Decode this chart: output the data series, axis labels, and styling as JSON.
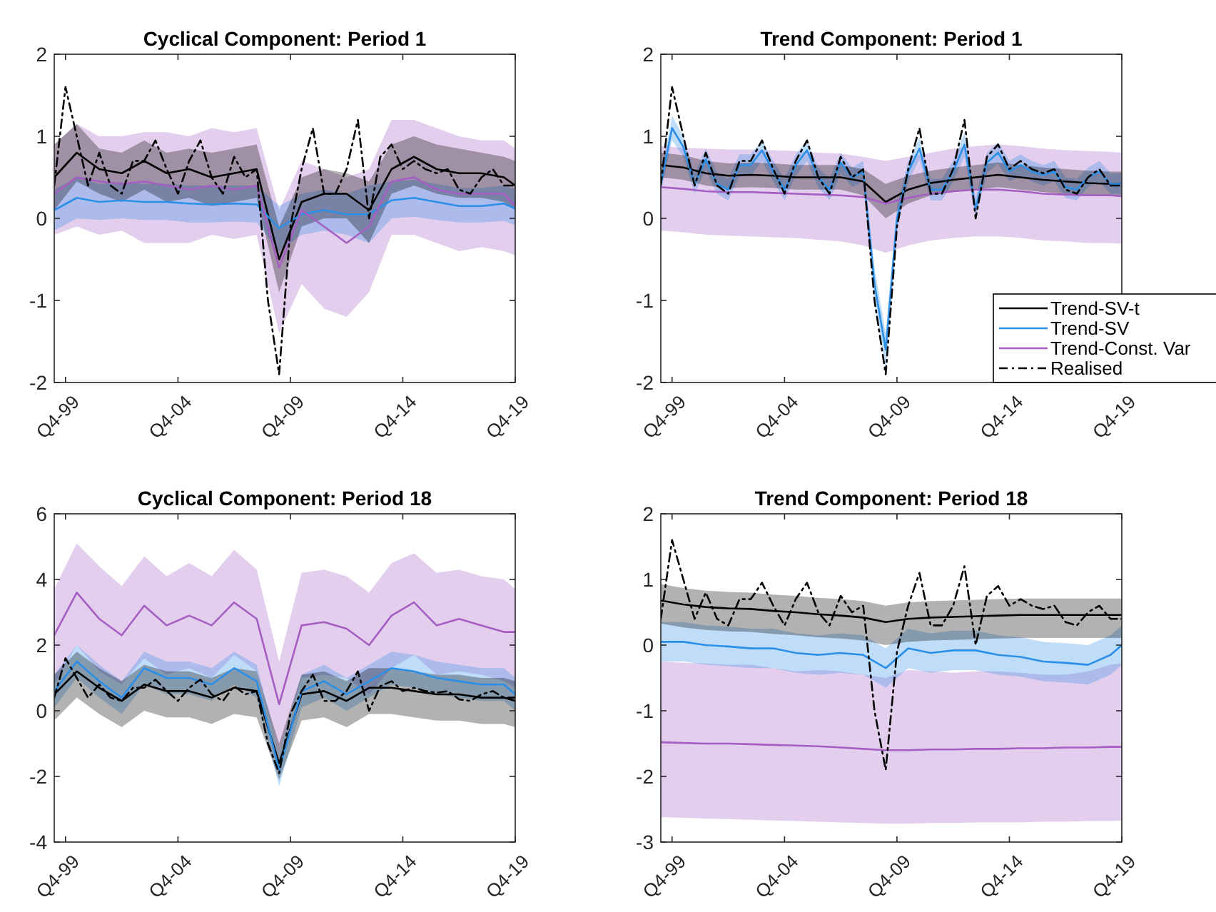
{
  "chart_data": [
    {
      "type": "line",
      "title": "Cyclical Component: Period 1",
      "xlim": [
        "1999-04",
        "2019-10"
      ],
      "xticks": [
        {
          "value": "1999-10",
          "label": "Q4-99"
        },
        {
          "value": "2004-10",
          "label": "Q4-04"
        },
        {
          "value": "2009-10",
          "label": "Q4-09"
        },
        {
          "value": "2014-10",
          "label": "Q4-14"
        },
        {
          "value": "2019-10",
          "label": "Q4-19"
        }
      ],
      "ylim": [
        -2,
        2
      ],
      "yticks": [
        -2,
        -1,
        0,
        1,
        2
      ],
      "series": [
        {
          "color": "#000000",
          "x": [
            "1999-04",
            "2000-04",
            "2001-04",
            "2002-04",
            "2003-04",
            "2004-04",
            "2005-04",
            "2006-04",
            "2007-04",
            "2008-04",
            "2009-04",
            "2010-04",
            "2011-04",
            "2012-04",
            "2013-04",
            "2014-04",
            "2015-04",
            "2016-04",
            "2017-04",
            "2018-04",
            "2019-04",
            "2019-10"
          ],
          "values": [
            0.5,
            0.8,
            0.6,
            0.55,
            0.7,
            0.55,
            0.6,
            0.5,
            0.55,
            0.6,
            -0.5,
            0.2,
            0.3,
            0.3,
            0.1,
            0.6,
            0.75,
            0.6,
            0.55,
            0.55,
            0.5,
            0.4
          ],
          "lower": [
            0.1,
            0.45,
            0.3,
            0.2,
            0.35,
            0.2,
            0.25,
            0.15,
            0.2,
            0.25,
            -0.9,
            -0.1,
            0.0,
            0.0,
            -0.3,
            0.3,
            0.4,
            0.3,
            0.25,
            0.25,
            0.2,
            0.1
          ],
          "upper": [
            0.9,
            1.15,
            0.85,
            0.8,
            0.95,
            0.8,
            0.85,
            0.8,
            0.85,
            0.9,
            -0.1,
            0.5,
            0.6,
            0.55,
            0.45,
            0.9,
            1.0,
            0.9,
            0.85,
            0.8,
            0.75,
            0.7
          ]
        },
        {
          "color": "#2b8fe8",
          "x": [
            "1999-04",
            "2000-04",
            "2001-04",
            "2002-04",
            "2003-04",
            "2004-04",
            "2005-04",
            "2006-04",
            "2007-04",
            "2008-04",
            "2009-04",
            "2010-04",
            "2011-04",
            "2012-04",
            "2013-04",
            "2014-04",
            "2015-04",
            "2016-04",
            "2017-04",
            "2018-04",
            "2019-04",
            "2019-10"
          ],
          "values": [
            0.1,
            0.25,
            0.2,
            0.22,
            0.2,
            0.2,
            0.18,
            0.17,
            0.18,
            0.17,
            -0.12,
            0.05,
            0.1,
            0.05,
            0.05,
            0.22,
            0.25,
            0.2,
            0.15,
            0.15,
            0.18,
            0.12
          ],
          "lower": [
            -0.15,
            0.0,
            -0.02,
            0,
            -0.02,
            -0.02,
            -0.05,
            -0.05,
            -0.04,
            -0.05,
            -0.4,
            -0.2,
            -0.15,
            -0.2,
            -0.3,
            0,
            0.02,
            -0.02,
            -0.05,
            -0.05,
            -0.03,
            -0.08
          ],
          "upper": [
            0.35,
            0.5,
            0.42,
            0.44,
            0.42,
            0.42,
            0.4,
            0.4,
            0.4,
            0.4,
            0.15,
            0.3,
            0.35,
            0.3,
            0.4,
            0.45,
            0.47,
            0.42,
            0.37,
            0.37,
            0.4,
            0.35
          ]
        },
        {
          "color": "#a55ec2",
          "x": [
            "1999-04",
            "2000-04",
            "2001-04",
            "2002-04",
            "2003-04",
            "2004-04",
            "2005-04",
            "2006-04",
            "2007-04",
            "2008-04",
            "2009-04",
            "2010-04",
            "2011-04",
            "2012-04",
            "2013-04",
            "2014-04",
            "2015-04",
            "2016-04",
            "2017-04",
            "2018-04",
            "2019-04",
            "2019-10"
          ],
          "values": [
            0.3,
            0.5,
            0.45,
            0.42,
            0.45,
            0.4,
            0.35,
            0.4,
            0.35,
            0.4,
            -0.6,
            0.1,
            -0.1,
            -0.3,
            -0.1,
            0.45,
            0.5,
            0.35,
            0.3,
            0.3,
            0.3,
            0.15
          ],
          "lower": [
            -0.2,
            -0.1,
            -0.2,
            -0.15,
            -0.3,
            -0.3,
            -0.3,
            -0.2,
            -0.25,
            -0.2,
            -1.4,
            -0.8,
            -1.1,
            -1.2,
            -0.9,
            -0.2,
            -0.2,
            -0.3,
            -0.4,
            -0.35,
            -0.4,
            -0.45
          ],
          "upper": [
            0.9,
            1.15,
            1.0,
            1.0,
            1.05,
            1.05,
            1.0,
            1.1,
            1.05,
            1.1,
            0.1,
            0.7,
            0.6,
            0.5,
            0.6,
            1.2,
            1.2,
            1.1,
            1.0,
            0.95,
            0.95,
            0.85
          ]
        },
        {
          "color": "#000000",
          "line_style": "dashed",
          "x": [
            "1999-04",
            "1999-10",
            "2000-04",
            "2000-10",
            "2001-04",
            "2001-10",
            "2002-04",
            "2002-10",
            "2003-04",
            "2003-10",
            "2004-04",
            "2004-10",
            "2005-04",
            "2005-10",
            "2006-04",
            "2006-10",
            "2007-04",
            "2007-10",
            "2008-04",
            "2008-10",
            "2009-04",
            "2009-10",
            "2010-04",
            "2010-10",
            "2011-04",
            "2011-10",
            "2012-04",
            "2012-10",
            "2013-04",
            "2013-10",
            "2014-04",
            "2014-10",
            "2015-04",
            "2015-10",
            "2016-04",
            "2016-10",
            "2017-04",
            "2017-10",
            "2018-04",
            "2018-10",
            "2019-04",
            "2019-10"
          ],
          "values": [
            0.4,
            1.6,
            1.0,
            0.4,
            0.8,
            0.4,
            0.3,
            0.7,
            0.7,
            0.95,
            0.6,
            0.3,
            0.7,
            0.95,
            0.5,
            0.3,
            0.75,
            0.5,
            0.6,
            -1.0,
            -1.9,
            -0.1,
            0.6,
            1.1,
            0.3,
            0.3,
            0.6,
            1.2,
            0.0,
            0.75,
            0.9,
            0.6,
            0.7,
            0.6,
            0.55,
            0.6,
            0.35,
            0.3,
            0.5,
            0.6,
            0.4,
            0.4
          ]
        }
      ]
    },
    {
      "type": "line",
      "title": "Trend Component: Period 1",
      "xlim": [
        "1999-04",
        "2019-10"
      ],
      "xticks": [
        {
          "value": "1999-10",
          "label": "Q4-99"
        },
        {
          "value": "2004-10",
          "label": "Q4-04"
        },
        {
          "value": "2009-10",
          "label": "Q4-09"
        },
        {
          "value": "2014-10",
          "label": "Q4-14"
        },
        {
          "value": "2019-10",
          "label": "Q4-19"
        }
      ],
      "ylim": [
        -2,
        2
      ],
      "yticks": [
        -2,
        -1,
        0,
        1,
        2
      ],
      "legend": "bottom right",
      "series": [
        {
          "name": "Trend-SV-t",
          "color": "#000000",
          "x": [
            "1999-04",
            "2000-04",
            "2001-04",
            "2002-04",
            "2003-04",
            "2004-04",
            "2005-04",
            "2006-04",
            "2007-04",
            "2008-04",
            "2009-04",
            "2010-04",
            "2011-04",
            "2012-04",
            "2013-04",
            "2014-04",
            "2015-04",
            "2016-04",
            "2017-04",
            "2018-04",
            "2019-04",
            "2019-10"
          ],
          "values": [
            0.65,
            0.62,
            0.55,
            0.52,
            0.53,
            0.52,
            0.5,
            0.5,
            0.5,
            0.45,
            0.2,
            0.35,
            0.43,
            0.47,
            0.5,
            0.53,
            0.5,
            0.47,
            0.45,
            0.43,
            0.42,
            0.42
          ],
          "lower": [
            0.5,
            0.47,
            0.4,
            0.37,
            0.38,
            0.37,
            0.35,
            0.35,
            0.35,
            0.28,
            0.0,
            0.18,
            0.28,
            0.32,
            0.35,
            0.38,
            0.35,
            0.32,
            0.3,
            0.28,
            0.27,
            0.27
          ],
          "upper": [
            0.8,
            0.77,
            0.7,
            0.67,
            0.68,
            0.67,
            0.65,
            0.65,
            0.65,
            0.6,
            0.42,
            0.52,
            0.58,
            0.62,
            0.65,
            0.68,
            0.65,
            0.62,
            0.6,
            0.58,
            0.57,
            0.57
          ]
        },
        {
          "name": "Trend-SV",
          "color": "#2b8fe8",
          "x": [
            "1999-04",
            "1999-10",
            "2000-04",
            "2000-10",
            "2001-04",
            "2001-10",
            "2002-04",
            "2002-10",
            "2003-04",
            "2003-10",
            "2004-04",
            "2004-10",
            "2005-04",
            "2005-10",
            "2006-04",
            "2006-10",
            "2007-04",
            "2007-10",
            "2008-04",
            "2008-10",
            "2009-04",
            "2009-10",
            "2010-04",
            "2010-10",
            "2011-04",
            "2011-10",
            "2012-04",
            "2012-10",
            "2013-04",
            "2013-10",
            "2014-04",
            "2014-10",
            "2015-04",
            "2015-10",
            "2016-04",
            "2016-10",
            "2017-04",
            "2017-10",
            "2018-04",
            "2018-10",
            "2019-04",
            "2019-10"
          ],
          "values": [
            0.42,
            1.1,
            0.87,
            0.42,
            0.72,
            0.42,
            0.35,
            0.65,
            0.65,
            0.83,
            0.57,
            0.35,
            0.65,
            0.83,
            0.5,
            0.35,
            0.68,
            0.5,
            0.57,
            -0.8,
            -1.6,
            0.0,
            0.57,
            0.85,
            0.35,
            0.35,
            0.57,
            0.9,
            0.12,
            0.68,
            0.8,
            0.57,
            0.65,
            0.57,
            0.53,
            0.57,
            0.38,
            0.35,
            0.5,
            0.57,
            0.42,
            0.42
          ],
          "lower": [
            0.32,
            0.95,
            0.75,
            0.3,
            0.6,
            0.3,
            0.22,
            0.52,
            0.52,
            0.7,
            0.45,
            0.22,
            0.52,
            0.7,
            0.38,
            0.22,
            0.55,
            0.38,
            0.45,
            -1.0,
            -1.85,
            -0.15,
            0.45,
            0.72,
            0.22,
            0.22,
            0.45,
            0.75,
            0.0,
            0.55,
            0.67,
            0.45,
            0.52,
            0.45,
            0.4,
            0.45,
            0.25,
            0.22,
            0.38,
            0.45,
            0.3,
            0.3
          ],
          "upper": [
            0.52,
            1.25,
            1.0,
            0.55,
            0.85,
            0.55,
            0.48,
            0.78,
            0.78,
            0.95,
            0.7,
            0.48,
            0.78,
            0.95,
            0.62,
            0.48,
            0.8,
            0.62,
            0.7,
            -0.6,
            -1.4,
            0.15,
            0.7,
            0.98,
            0.48,
            0.48,
            0.7,
            1.05,
            0.25,
            0.8,
            0.93,
            0.7,
            0.78,
            0.7,
            0.65,
            0.7,
            0.5,
            0.48,
            0.62,
            0.7,
            0.55,
            0.55
          ]
        },
        {
          "name": "Trend-Const. Var",
          "color": "#a55ec2",
          "x": [
            "1999-04",
            "2000-04",
            "2001-04",
            "2002-04",
            "2003-04",
            "2004-04",
            "2005-04",
            "2006-04",
            "2007-04",
            "2008-04",
            "2009-04",
            "2010-04",
            "2011-04",
            "2012-04",
            "2013-04",
            "2014-04",
            "2015-04",
            "2016-04",
            "2017-04",
            "2018-04",
            "2019-04",
            "2019-10"
          ],
          "values": [
            0.38,
            0.36,
            0.33,
            0.32,
            0.32,
            0.31,
            0.3,
            0.29,
            0.28,
            0.26,
            0.18,
            0.25,
            0.3,
            0.33,
            0.35,
            0.35,
            0.33,
            0.3,
            0.29,
            0.28,
            0.28,
            0.27
          ],
          "lower": [
            -0.15,
            -0.17,
            -0.2,
            -0.21,
            -0.22,
            -0.23,
            -0.24,
            -0.26,
            -0.28,
            -0.33,
            -0.42,
            -0.33,
            -0.27,
            -0.24,
            -0.22,
            -0.22,
            -0.24,
            -0.27,
            -0.28,
            -0.3,
            -0.3,
            -0.31
          ],
          "upper": [
            0.88,
            0.86,
            0.85,
            0.84,
            0.84,
            0.83,
            0.82,
            0.8,
            0.79,
            0.75,
            0.7,
            0.75,
            0.8,
            0.85,
            0.88,
            0.9,
            0.88,
            0.85,
            0.83,
            0.82,
            0.81,
            0.8
          ]
        },
        {
          "name": "Realised",
          "color": "#000000",
          "line_style": "dashed",
          "x": [
            "1999-04",
            "1999-10",
            "2000-04",
            "2000-10",
            "2001-04",
            "2001-10",
            "2002-04",
            "2002-10",
            "2003-04",
            "2003-10",
            "2004-04",
            "2004-10",
            "2005-04",
            "2005-10",
            "2006-04",
            "2006-10",
            "2007-04",
            "2007-10",
            "2008-04",
            "2008-10",
            "2009-04",
            "2009-10",
            "2010-04",
            "2010-10",
            "2011-04",
            "2011-10",
            "2012-04",
            "2012-10",
            "2013-04",
            "2013-10",
            "2014-04",
            "2014-10",
            "2015-04",
            "2015-10",
            "2016-04",
            "2016-10",
            "2017-04",
            "2017-10",
            "2018-04",
            "2018-10",
            "2019-04",
            "2019-10"
          ],
          "values": [
            0.4,
            1.6,
            1.0,
            0.4,
            0.8,
            0.4,
            0.3,
            0.7,
            0.7,
            0.95,
            0.6,
            0.3,
            0.7,
            0.95,
            0.5,
            0.3,
            0.75,
            0.5,
            0.6,
            -1.0,
            -1.9,
            -0.1,
            0.6,
            1.1,
            0.3,
            0.3,
            0.6,
            1.2,
            0.0,
            0.75,
            0.9,
            0.6,
            0.7,
            0.6,
            0.55,
            0.6,
            0.35,
            0.3,
            0.5,
            0.6,
            0.4,
            0.4
          ]
        }
      ]
    },
    {
      "type": "line",
      "title": "Cyclical Component: Period 18",
      "xlim": [
        "1999-04",
        "2019-10"
      ],
      "xticks": [
        {
          "value": "1999-10",
          "label": "Q4-99"
        },
        {
          "value": "2004-10",
          "label": "Q4-04"
        },
        {
          "value": "2009-10",
          "label": "Q4-09"
        },
        {
          "value": "2014-10",
          "label": "Q4-14"
        },
        {
          "value": "2019-10",
          "label": "Q4-19"
        }
      ],
      "ylim": [
        -4,
        6
      ],
      "yticks": [
        -4,
        -2,
        0,
        2,
        4,
        6
      ],
      "series": [
        {
          "color": "#000000",
          "x": [
            "1999-04",
            "2000-04",
            "2001-04",
            "2002-04",
            "2003-04",
            "2004-04",
            "2005-04",
            "2006-04",
            "2007-04",
            "2008-04",
            "2009-04",
            "2010-04",
            "2011-04",
            "2012-04",
            "2013-04",
            "2014-04",
            "2015-04",
            "2016-04",
            "2017-04",
            "2018-04",
            "2019-04",
            "2019-10"
          ],
          "values": [
            0.5,
            1.2,
            0.7,
            0.3,
            0.8,
            0.6,
            0.6,
            0.4,
            0.7,
            0.6,
            -1.6,
            0.5,
            0.6,
            0.3,
            0.7,
            0.7,
            0.6,
            0.5,
            0.5,
            0.4,
            0.4,
            0.3
          ],
          "lower": [
            -0.3,
            0.4,
            -0.1,
            -0.5,
            0.0,
            -0.2,
            -0.2,
            -0.4,
            -0.1,
            -0.2,
            -2.1,
            -0.3,
            -0.2,
            -0.5,
            -0.1,
            -0.1,
            -0.2,
            -0.3,
            -0.3,
            -0.4,
            -0.4,
            -0.5
          ],
          "upper": [
            1.1,
            1.8,
            1.3,
            0.9,
            1.4,
            1.2,
            1.2,
            1.0,
            1.3,
            1.2,
            -1.0,
            1.1,
            1.2,
            0.9,
            1.3,
            1.3,
            1.2,
            1.1,
            1.1,
            1.0,
            1.0,
            0.9
          ]
        },
        {
          "color": "#2b8fe8",
          "x": [
            "1999-04",
            "2000-04",
            "2001-04",
            "2002-04",
            "2003-04",
            "2004-04",
            "2005-04",
            "2006-04",
            "2007-04",
            "2008-04",
            "2009-04",
            "2010-04",
            "2011-04",
            "2012-04",
            "2013-04",
            "2014-04",
            "2015-04",
            "2016-04",
            "2017-04",
            "2018-04",
            "2019-04",
            "2019-10"
          ],
          "values": [
            0.6,
            1.5,
            0.9,
            0.4,
            1.3,
            1.0,
            1.0,
            0.8,
            1.3,
            0.9,
            -1.8,
            0.6,
            0.9,
            0.5,
            0.9,
            1.3,
            1.2,
            1.0,
            0.9,
            0.8,
            0.8,
            0.5
          ],
          "lower": [
            0.1,
            1.0,
            0.4,
            -0.1,
            0.8,
            0.5,
            0.5,
            0.3,
            0.8,
            0.4,
            -2.3,
            0.1,
            0.4,
            0.0,
            0.4,
            0.8,
            0.7,
            0.5,
            0.4,
            0.3,
            0.3,
            0.0
          ],
          "upper": [
            1.1,
            2.0,
            1.4,
            0.9,
            1.8,
            1.5,
            1.5,
            1.3,
            1.8,
            1.4,
            -1.3,
            1.1,
            1.4,
            1.0,
            1.4,
            1.8,
            1.7,
            1.5,
            1.4,
            1.3,
            1.3,
            1.0
          ]
        },
        {
          "color": "#a55ec2",
          "x": [
            "1999-04",
            "2000-04",
            "2001-04",
            "2002-04",
            "2003-04",
            "2004-04",
            "2005-04",
            "2006-04",
            "2007-04",
            "2008-04",
            "2009-04",
            "2010-04",
            "2011-04",
            "2012-04",
            "2013-04",
            "2014-04",
            "2015-04",
            "2016-04",
            "2017-04",
            "2018-04",
            "2019-04",
            "2019-10"
          ],
          "values": [
            2.3,
            3.6,
            2.8,
            2.3,
            3.2,
            2.6,
            2.9,
            2.6,
            3.3,
            2.8,
            0.2,
            2.6,
            2.7,
            2.5,
            2.0,
            2.9,
            3.3,
            2.6,
            2.8,
            2.6,
            2.4,
            2.4
          ],
          "lower": [
            0.8,
            2.0,
            1.2,
            0.8,
            1.6,
            1.1,
            1.3,
            1.0,
            1.7,
            1.2,
            -1.3,
            1.0,
            1.1,
            1.0,
            0.5,
            1.3,
            1.7,
            1.1,
            1.2,
            1.1,
            0.9,
            0.7
          ],
          "upper": [
            3.7,
            5.1,
            4.4,
            3.8,
            4.7,
            4.1,
            4.5,
            4.1,
            4.9,
            4.3,
            1.5,
            4.2,
            4.3,
            4.1,
            3.6,
            4.5,
            4.8,
            4.2,
            4.3,
            4.1,
            4.0,
            3.7
          ]
        },
        {
          "color": "#000000",
          "line_style": "dashed",
          "x": [
            "1999-04",
            "1999-10",
            "2000-04",
            "2000-10",
            "2001-04",
            "2001-10",
            "2002-04",
            "2002-10",
            "2003-04",
            "2003-10",
            "2004-04",
            "2004-10",
            "2005-04",
            "2005-10",
            "2006-04",
            "2006-10",
            "2007-04",
            "2007-10",
            "2008-04",
            "2008-10",
            "2009-04",
            "2009-10",
            "2010-04",
            "2010-10",
            "2011-04",
            "2011-10",
            "2012-04",
            "2012-10",
            "2013-04",
            "2013-10",
            "2014-04",
            "2014-10",
            "2015-04",
            "2015-10",
            "2016-04",
            "2016-10",
            "2017-04",
            "2017-10",
            "2018-04",
            "2018-10",
            "2019-04",
            "2019-10"
          ],
          "values": [
            0.4,
            1.6,
            1.0,
            0.4,
            0.8,
            0.4,
            0.3,
            0.7,
            0.7,
            0.95,
            0.6,
            0.3,
            0.7,
            0.95,
            0.5,
            0.3,
            0.75,
            0.5,
            0.6,
            -1.0,
            -1.9,
            -0.1,
            0.6,
            1.1,
            0.3,
            0.3,
            0.6,
            1.2,
            0.0,
            0.75,
            0.9,
            0.6,
            0.7,
            0.6,
            0.55,
            0.6,
            0.35,
            0.3,
            0.5,
            0.6,
            0.4,
            0.4
          ]
        }
      ]
    },
    {
      "type": "line",
      "title": "Trend Component: Period 18",
      "xlim": [
        "1999-04",
        "2019-10"
      ],
      "xticks": [
        {
          "value": "1999-10",
          "label": "Q4-99"
        },
        {
          "value": "2004-10",
          "label": "Q4-04"
        },
        {
          "value": "2009-10",
          "label": "Q4-09"
        },
        {
          "value": "2014-10",
          "label": "Q4-14"
        },
        {
          "value": "2019-10",
          "label": "Q4-19"
        }
      ],
      "ylim": [
        -3,
        2
      ],
      "yticks": [
        -3,
        -2,
        -1,
        0,
        1,
        2
      ],
      "series": [
        {
          "color": "#000000",
          "x": [
            "1999-04",
            "2000-04",
            "2001-04",
            "2002-04",
            "2003-04",
            "2004-04",
            "2005-04",
            "2006-04",
            "2007-04",
            "2008-04",
            "2009-04",
            "2010-04",
            "2011-04",
            "2012-04",
            "2013-04",
            "2014-04",
            "2015-04",
            "2016-04",
            "2017-04",
            "2018-04",
            "2019-04",
            "2019-10"
          ],
          "values": [
            0.68,
            0.62,
            0.58,
            0.56,
            0.55,
            0.52,
            0.5,
            0.47,
            0.45,
            0.42,
            0.35,
            0.4,
            0.42,
            0.43,
            0.44,
            0.45,
            0.46,
            0.46,
            0.46,
            0.46,
            0.46,
            0.46
          ],
          "lower": [
            0.33,
            0.27,
            0.23,
            0.21,
            0.2,
            0.17,
            0.15,
            0.12,
            0.1,
            0.07,
            0.0,
            0.05,
            0.07,
            0.08,
            0.09,
            0.1,
            0.11,
            0.11,
            0.11,
            0.11,
            0.11,
            0.11
          ],
          "upper": [
            0.93,
            0.87,
            0.83,
            0.81,
            0.8,
            0.77,
            0.75,
            0.72,
            0.7,
            0.67,
            0.6,
            0.65,
            0.67,
            0.68,
            0.69,
            0.7,
            0.71,
            0.71,
            0.71,
            0.71,
            0.71,
            0.71
          ]
        },
        {
          "color": "#2b8fe8",
          "x": [
            "1999-04",
            "2000-04",
            "2001-04",
            "2002-04",
            "2003-04",
            "2004-04",
            "2005-04",
            "2006-04",
            "2007-04",
            "2008-04",
            "2009-04",
            "2010-04",
            "2011-04",
            "2012-04",
            "2013-04",
            "2014-04",
            "2015-04",
            "2016-04",
            "2017-04",
            "2018-04",
            "2019-04",
            "2019-10"
          ],
          "values": [
            0.05,
            0.05,
            0.0,
            -0.02,
            -0.05,
            -0.05,
            -0.12,
            -0.15,
            -0.12,
            -0.15,
            -0.35,
            -0.05,
            -0.12,
            -0.08,
            -0.08,
            -0.15,
            -0.18,
            -0.25,
            -0.27,
            -0.3,
            -0.15,
            0.0
          ],
          "lower": [
            -0.25,
            -0.25,
            -0.3,
            -0.32,
            -0.35,
            -0.35,
            -0.42,
            -0.45,
            -0.42,
            -0.45,
            -0.65,
            -0.35,
            -0.42,
            -0.38,
            -0.38,
            -0.45,
            -0.48,
            -0.55,
            -0.57,
            -0.6,
            -0.45,
            -0.3
          ],
          "upper": [
            0.35,
            0.35,
            0.3,
            0.28,
            0.25,
            0.25,
            0.18,
            0.15,
            0.18,
            0.15,
            -0.05,
            0.25,
            0.18,
            0.22,
            0.22,
            0.15,
            0.12,
            0.05,
            0.03,
            0.0,
            0.15,
            0.3
          ]
        },
        {
          "color": "#a55ec2",
          "x": [
            "1999-04",
            "2000-04",
            "2001-04",
            "2002-04",
            "2003-04",
            "2004-04",
            "2005-04",
            "2006-04",
            "2007-04",
            "2008-04",
            "2009-04",
            "2010-04",
            "2011-04",
            "2012-04",
            "2013-04",
            "2014-04",
            "2015-04",
            "2016-04",
            "2017-04",
            "2018-04",
            "2019-04",
            "2019-10"
          ],
          "values": [
            -1.48,
            -1.49,
            -1.5,
            -1.5,
            -1.51,
            -1.52,
            -1.53,
            -1.54,
            -1.56,
            -1.58,
            -1.6,
            -1.6,
            -1.59,
            -1.59,
            -1.58,
            -1.58,
            -1.57,
            -1.57,
            -1.56,
            -1.56,
            -1.55,
            -1.55
          ],
          "lower": [
            -2.62,
            -2.63,
            -2.64,
            -2.65,
            -2.66,
            -2.67,
            -2.68,
            -2.69,
            -2.7,
            -2.71,
            -2.72,
            -2.72,
            -2.71,
            -2.71,
            -2.7,
            -2.7,
            -2.7,
            -2.69,
            -2.69,
            -2.68,
            -2.68,
            -2.67
          ],
          "upper": [
            -0.25,
            -0.27,
            -0.28,
            -0.3,
            -0.3,
            -0.35,
            -0.4,
            -0.38,
            -0.4,
            -0.45,
            -0.5,
            -0.38,
            -0.4,
            -0.42,
            -0.4,
            -0.4,
            -0.42,
            -0.45,
            -0.45,
            -0.4,
            -0.3,
            -0.28
          ]
        },
        {
          "color": "#000000",
          "line_style": "dashed",
          "x": [
            "1999-04",
            "1999-10",
            "2000-04",
            "2000-10",
            "2001-04",
            "2001-10",
            "2002-04",
            "2002-10",
            "2003-04",
            "2003-10",
            "2004-04",
            "2004-10",
            "2005-04",
            "2005-10",
            "2006-04",
            "2006-10",
            "2007-04",
            "2007-10",
            "2008-04",
            "2008-10",
            "2009-04",
            "2009-10",
            "2010-04",
            "2010-10",
            "2011-04",
            "2011-10",
            "2012-04",
            "2012-10",
            "2013-04",
            "2013-10",
            "2014-04",
            "2014-10",
            "2015-04",
            "2015-10",
            "2016-04",
            "2016-10",
            "2017-04",
            "2017-10",
            "2018-04",
            "2018-10",
            "2019-04",
            "2019-10"
          ],
          "values": [
            0.4,
            1.6,
            1.0,
            0.4,
            0.8,
            0.4,
            0.3,
            0.7,
            0.7,
            0.95,
            0.6,
            0.3,
            0.7,
            0.95,
            0.5,
            0.3,
            0.75,
            0.5,
            0.6,
            -1.0,
            -1.9,
            -0.1,
            0.6,
            1.1,
            0.3,
            0.3,
            0.6,
            1.2,
            0.0,
            0.75,
            0.9,
            0.6,
            0.7,
            0.6,
            0.55,
            0.6,
            0.35,
            0.3,
            0.5,
            0.6,
            0.4,
            0.4
          ]
        }
      ]
    }
  ]
}
